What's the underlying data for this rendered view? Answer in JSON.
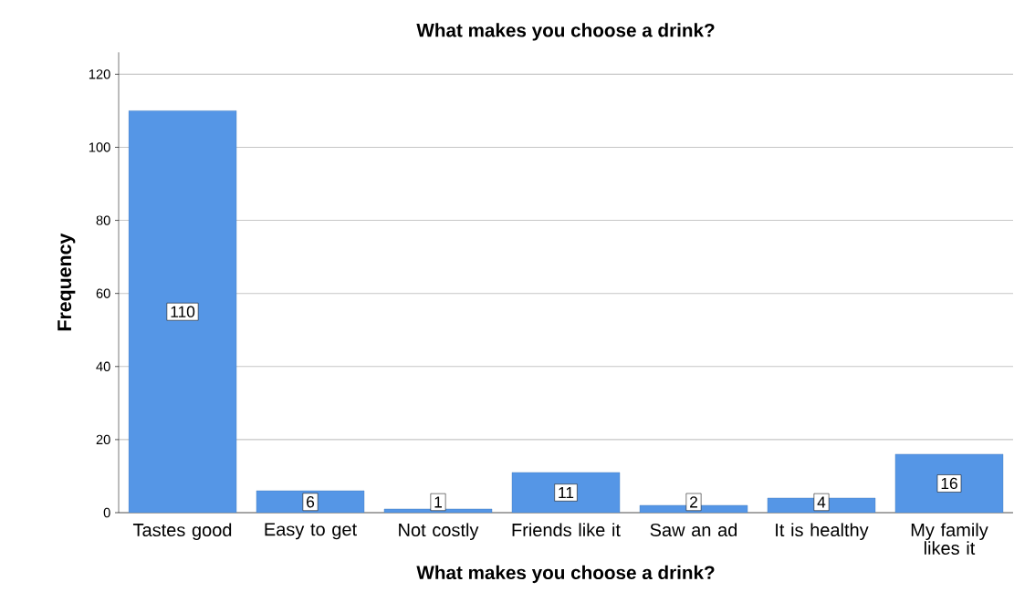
{
  "chart_data": {
    "type": "bar",
    "title": "What makes you choose a drink?",
    "xlabel": "What makes you choose a drink?",
    "ylabel": "Frequency",
    "categories": [
      "Tastes good",
      "Easy to get",
      "Not costly",
      "Friends like it",
      "Saw an ad",
      "It is healthy",
      "My family likes it"
    ],
    "values": [
      110,
      6,
      1,
      11,
      2,
      4,
      16
    ],
    "color": "#5596e6",
    "ylim": [
      0,
      126
    ],
    "yticks": [
      0,
      20,
      40,
      60,
      80,
      100,
      120
    ],
    "grid": "y",
    "data_labels": true
  }
}
